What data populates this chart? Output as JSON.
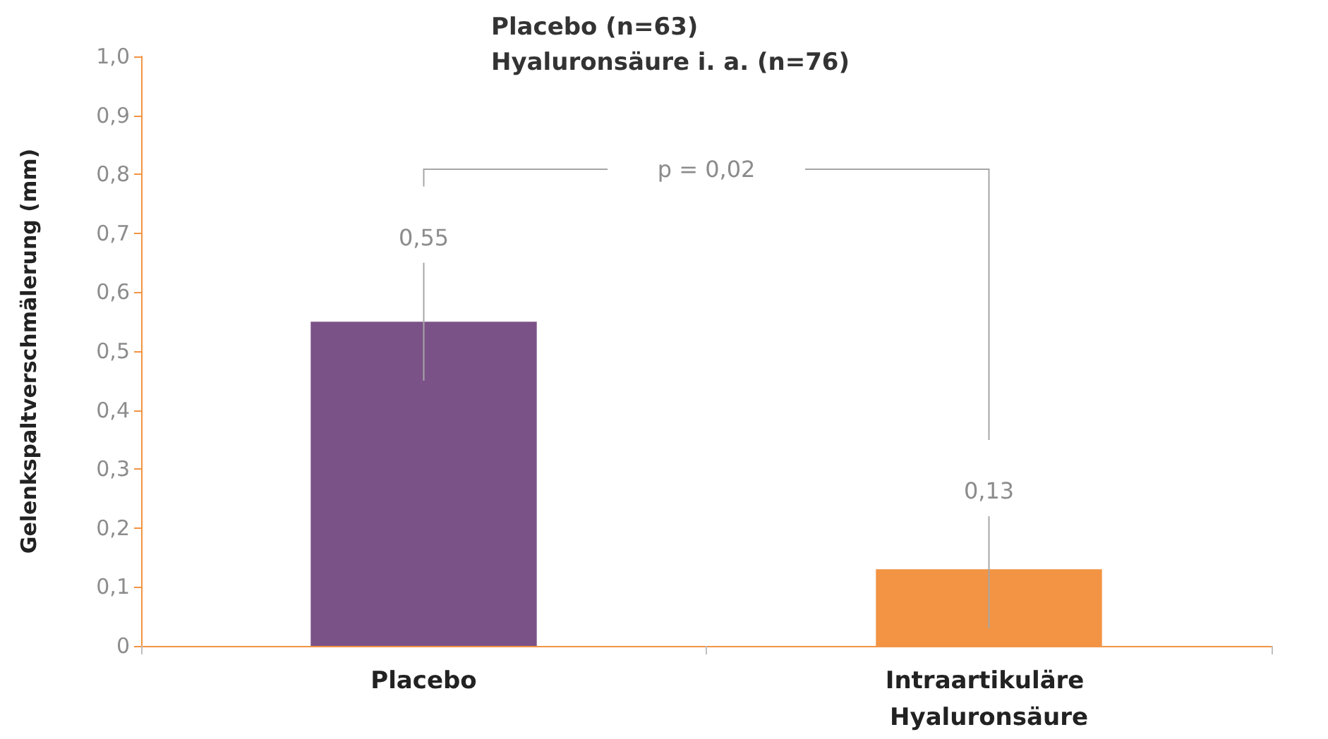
{
  "chart_data": {
    "type": "bar",
    "title": "Placebo (n=63)",
    "subtitle": "Hyaluronsäure i. a. (n=76)",
    "ylabel": "Gelenkspaltverschmälerung (mm)",
    "categories": [
      "Placebo",
      "Intraartikuläre Hyaluronsäure"
    ],
    "values": [
      0.55,
      0.13
    ],
    "colors": [
      "#7b5288",
      "#f29444"
    ],
    "errors": [
      [
        0.45,
        0.65
      ],
      [
        0.03,
        0.22
      ]
    ],
    "value_labels": [
      "0,55",
      "0,13"
    ],
    "annotations": [
      "p = 0,02"
    ],
    "ylim": [
      0,
      1
    ],
    "yticks": [
      {
        "value": 0,
        "label": "0"
      },
      {
        "value": 0.1,
        "label": "0,1"
      },
      {
        "value": 0.2,
        "label": "0,2"
      },
      {
        "value": 0.3,
        "label": "0,3"
      },
      {
        "value": 0.4,
        "label": "0,4"
      },
      {
        "value": 0.5,
        "label": "0,5"
      },
      {
        "value": 0.6,
        "label": "0,6"
      },
      {
        "value": 0.7,
        "label": "0,7"
      },
      {
        "value": 0.8,
        "label": "0,8"
      },
      {
        "value": 0.9,
        "label": "0,9"
      },
      {
        "value": 1,
        "label": "1,0"
      }
    ],
    "grid": false
  }
}
